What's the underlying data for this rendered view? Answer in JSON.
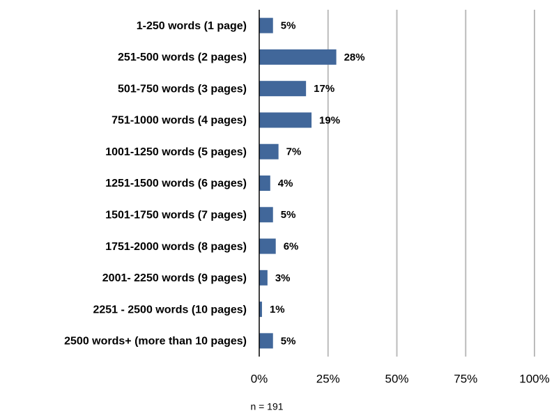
{
  "chart_data": {
    "type": "bar",
    "orientation": "horizontal",
    "categories": [
      "1-250 words (1 page)",
      "251-500 words (2 pages)",
      "501-750 words (3 pages)",
      "751-1000 words (4 pages)",
      "1001-1250 words (5 pages)",
      "1251-1500 words (6 pages)",
      "1501-1750 words (7 pages)",
      "1751-2000 words (8 pages)",
      "2001- 2250 words (9 pages)",
      "2251 - 2500 words (10 pages)",
      "2500 words+ (more than 10 pages)"
    ],
    "values": [
      5,
      28,
      17,
      19,
      7,
      4,
      5,
      6,
      3,
      1,
      5
    ],
    "value_labels": [
      "5%",
      "28%",
      "17%",
      "19%",
      "7%",
      "4%",
      "5%",
      "6%",
      "3%",
      "1%",
      "5%"
    ],
    "color": "#41679a",
    "xlim": [
      0,
      100
    ],
    "xticks": [
      {
        "value": 0,
        "label": "0%"
      },
      {
        "value": 25,
        "label": "25%"
      },
      {
        "value": 50,
        "label": "50%"
      },
      {
        "value": 75,
        "label": "75%"
      },
      {
        "value": 100,
        "label": "100%"
      }
    ],
    "grid": true,
    "annotation": "n = 191"
  }
}
